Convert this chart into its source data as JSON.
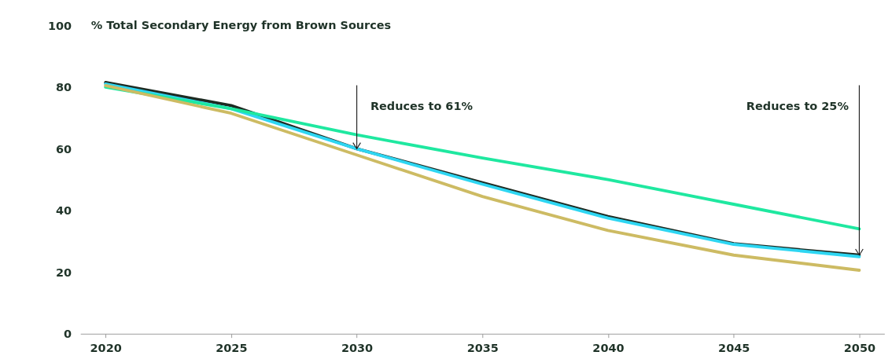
{
  "chart_data": {
    "type": "line",
    "title": "% Total Secondary Energy from Brown Sources",
    "x": [
      2020,
      2025,
      2030,
      2035,
      2040,
      2045,
      2050
    ],
    "xlim": [
      2019,
      2051
    ],
    "xticks": [
      2020,
      2025,
      2030,
      2035,
      2040,
      2045,
      2050
    ],
    "ylim": [
      0,
      100
    ],
    "yticks": [
      0,
      20,
      40,
      60,
      80,
      100
    ],
    "series": [
      {
        "color": "#1d2b22",
        "values": [
          81.5,
          74,
          60,
          49,
          38,
          29.2,
          25.5
        ]
      },
      {
        "color": "#2ed6f2",
        "values": [
          81,
          73,
          60,
          48.5,
          37.5,
          29,
          25
        ]
      },
      {
        "color": "#1fe8a0",
        "values": [
          80,
          73,
          64.5,
          57,
          50,
          42,
          34
        ]
      },
      {
        "color": "#cdbb63",
        "values": [
          80.5,
          71.5,
          58,
          44.5,
          33.5,
          25.5,
          20.6
        ]
      }
    ],
    "ref_lines": [
      {
        "axis": "x",
        "value": 2030,
        "label": "Reduces to 61%",
        "color": "#222222",
        "line_style": "solid"
      },
      {
        "axis": "x",
        "value": 2050,
        "label": "Reduces to 25%",
        "color": "#222222",
        "line_style": "solid"
      }
    ],
    "grid": false,
    "legend": false,
    "marker": "none",
    "line_style": "solid"
  }
}
